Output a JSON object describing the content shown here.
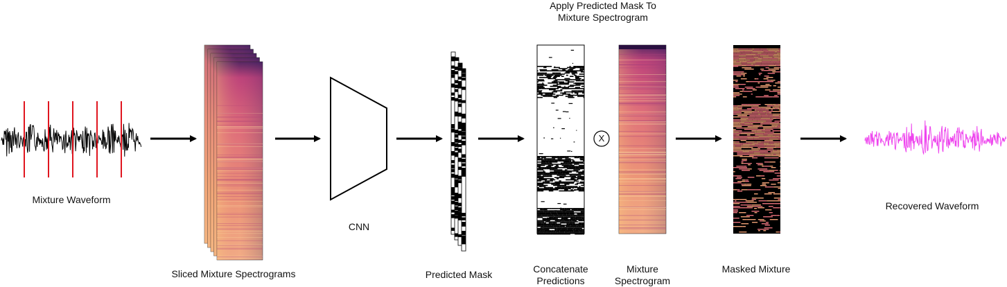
{
  "labels": {
    "mixture_waveform": "Mixture Waveform",
    "sliced_spectrograms": "Sliced Mixture Spectrograms",
    "cnn": "CNN",
    "predicted_mask": "Predicted Mask",
    "concatenate_line1": "Concatenate",
    "concatenate_line2": "Predictions",
    "mixture_spec_line1": "Mixture",
    "mixture_spec_line2": "Spectrogram",
    "masked_mixture": "Masked Mixture",
    "recovered_waveform": "Recovered Waveform",
    "apply_line1": "Apply Predicted Mask To",
    "apply_line2": "Mixture Spectrogram",
    "multiply_symbol": "X"
  },
  "colors": {
    "waveform": "#000000",
    "slice_markers": "#e0141e",
    "recovered_waveform": "#ee44ee",
    "spectrogram_low": "#f6b27a",
    "spectrogram_mid": "#d8547a",
    "spectrogram_high": "#3c1f5e",
    "arrow": "#000000"
  }
}
